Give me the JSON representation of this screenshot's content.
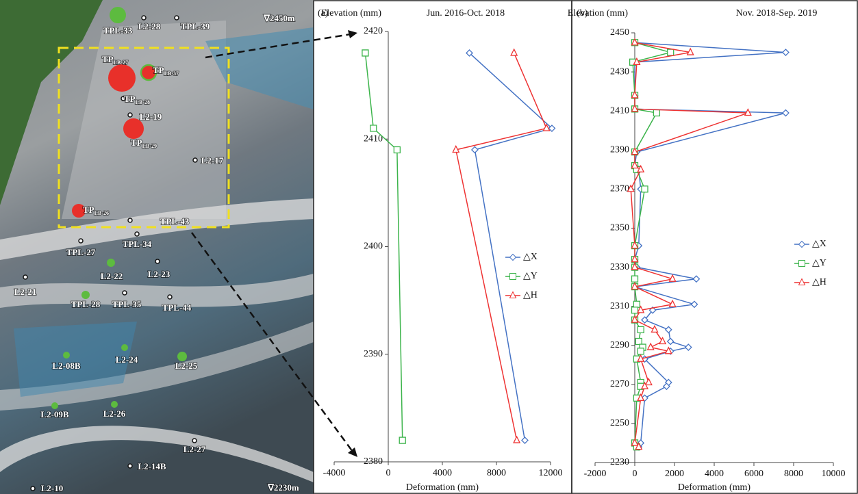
{
  "photo": {
    "labels": [
      {
        "text": "TPL-33",
        "color": "#5dbb3f"
      },
      {
        "text": "L2-28",
        "color": "#ffffff"
      },
      {
        "text": "TPL-39",
        "color": "#ffffff"
      },
      {
        "text": "∇2450m"
      },
      {
        "text": "TP",
        "sub": "LB-27",
        "color": "#e8302a"
      },
      {
        "text": "TP",
        "sub": "LB-37",
        "color": "#e8302a"
      },
      {
        "text": "TP",
        "sub": "LB-28",
        "color": "#ffffff"
      },
      {
        "text": "L2-19",
        "color": "#ffffff"
      },
      {
        "text": "TP",
        "sub": "LB-29",
        "color": "#e8302a"
      },
      {
        "text": "L2-17",
        "color": "#ffffff"
      },
      {
        "text": "TP",
        "sub": "LB-26",
        "color": "#e8302a"
      },
      {
        "text": "TPL-43",
        "color": "#ffffff"
      },
      {
        "text": "TPL-27",
        "color": "#ffffff"
      },
      {
        "text": "TPL-34",
        "color": "#ffffff"
      },
      {
        "text": "L2-22",
        "color": "#5dbb3f"
      },
      {
        "text": "L2-23",
        "color": "#ffffff"
      },
      {
        "text": "L2-21",
        "color": "#ffffff"
      },
      {
        "text": "TPL-28",
        "color": "#5dbb3f"
      },
      {
        "text": "TPL-35",
        "color": "#ffffff"
      },
      {
        "text": "TPL-44",
        "color": "#ffffff"
      },
      {
        "text": "L2-08B",
        "color": "#5dbb3f"
      },
      {
        "text": "L2-24",
        "color": "#5dbb3f"
      },
      {
        "text": "L2-25",
        "color": "#5dbb3f"
      },
      {
        "text": "L2-09B",
        "color": "#5dbb3f"
      },
      {
        "text": "L2-26",
        "color": "#5dbb3f"
      },
      {
        "text": "L2-27",
        "color": "#ffffff"
      },
      {
        "text": "L2-14B",
        "color": "#ffffff"
      },
      {
        "text": "L2-10",
        "color": "#ffffff"
      },
      {
        "text": "∇2230m"
      }
    ]
  },
  "chart_data": [
    {
      "type": "line",
      "panel": "(a)",
      "title": "Jun. 2016-Oct. 2018",
      "y_label": "Elevation (mm)",
      "x_label": "Deformation (mm)",
      "elevation": [
        2418,
        2411,
        2409,
        2382
      ],
      "series": [
        {
          "name": "△X",
          "color": "#4472c4",
          "marker": "diamond",
          "values": [
            6000,
            12100,
            6400,
            10100
          ]
        },
        {
          "name": "△Y",
          "color": "#3cb44b",
          "marker": "square",
          "values": [
            -1700,
            -1100,
            650,
            1050
          ]
        },
        {
          "name": "△H",
          "color": "#ee3333",
          "marker": "triangle",
          "values": [
            9300,
            11700,
            5000,
            9500
          ]
        }
      ],
      "xlim": [
        -4000,
        12000
      ],
      "xticks": [
        -4000,
        0,
        4000,
        8000,
        12000
      ],
      "ylim": [
        2380,
        2420
      ],
      "yticks": [
        2380,
        2390,
        2400,
        2410,
        2420
      ],
      "legend": "right"
    },
    {
      "type": "line",
      "panel": "(b)",
      "title": "Nov. 2018-Sep. 2019",
      "y_label": "Elevation (mm)",
      "x_label": "Deformation (mm)",
      "elevation": [
        2445,
        2440,
        2435,
        2418,
        2411,
        2409,
        2389,
        2382,
        2380,
        2370,
        2341,
        2334,
        2330,
        2324,
        2320,
        2311,
        2308,
        2303,
        2298,
        2292,
        2289,
        2287,
        2283,
        2271,
        2269,
        2263,
        2240,
        2238
      ],
      "series": [
        {
          "name": "△X",
          "color": "#4472c4",
          "marker": "diamond",
          "values": [
            0,
            7600,
            0,
            0,
            0,
            7600,
            100,
            0,
            200,
            300,
            200,
            0,
            100,
            3100,
            0,
            3000,
            900,
            500,
            1700,
            1800,
            2700,
            1800,
            500,
            1700,
            1600,
            500,
            300,
            200
          ]
        },
        {
          "name": "△Y",
          "color": "#3cb44b",
          "marker": "square",
          "values": [
            0,
            1800,
            -100,
            0,
            0,
            1100,
            0,
            0,
            100,
            500,
            0,
            0,
            0,
            0,
            0,
            100,
            0,
            0,
            300,
            200,
            400,
            300,
            100,
            300,
            300,
            100,
            0,
            100
          ]
        },
        {
          "name": "△H",
          "color": "#ee3333",
          "marker": "triangle",
          "values": [
            0,
            2800,
            100,
            0,
            0,
            5700,
            0,
            0,
            300,
            -200,
            0,
            0,
            0,
            1900,
            0,
            1900,
            300,
            0,
            1000,
            1400,
            800,
            1700,
            300,
            700,
            500,
            300,
            0,
            200
          ]
        }
      ],
      "xlim": [
        -2000,
        10000
      ],
      "xticks": [
        -2000,
        0,
        2000,
        4000,
        6000,
        8000,
        10000
      ],
      "ylim": [
        2230,
        2450
      ],
      "yticks": [
        2230,
        2250,
        2270,
        2290,
        2310,
        2330,
        2350,
        2370,
        2390,
        2410,
        2430,
        2450
      ],
      "legend": "right"
    }
  ]
}
